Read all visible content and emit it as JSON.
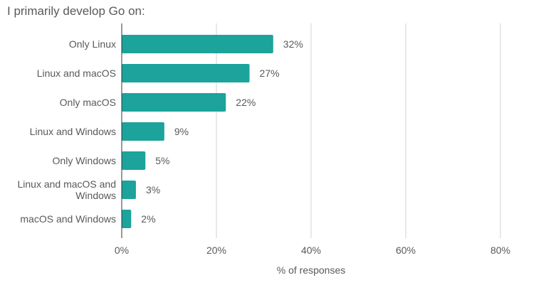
{
  "chart_data": {
    "type": "bar",
    "orientation": "horizontal",
    "title": "I primarily develop Go on:",
    "xlabel": "% of responses",
    "ylabel": "",
    "categories": [
      [
        "Only Linux"
      ],
      [
        "Linux and macOS"
      ],
      [
        "Only macOS"
      ],
      [
        "Linux and Windows"
      ],
      [
        "Only Windows"
      ],
      [
        "Linux and macOS and",
        "Windows"
      ],
      [
        "macOS and Windows"
      ]
    ],
    "values": [
      32,
      27,
      22,
      9,
      5,
      3,
      2
    ],
    "data_labels": [
      "32%",
      "27%",
      "22%",
      "9%",
      "5%",
      "3%",
      "2%"
    ],
    "xlim": [
      0,
      85
    ],
    "xticks": [
      0,
      20,
      40,
      60,
      80
    ],
    "xtick_labels": [
      "0%",
      "20%",
      "40%",
      "60%",
      "80%"
    ],
    "grid": "vertical",
    "legend": "none",
    "bar_color": "#1ba39c",
    "grid_color": "#d0d0d0"
  }
}
